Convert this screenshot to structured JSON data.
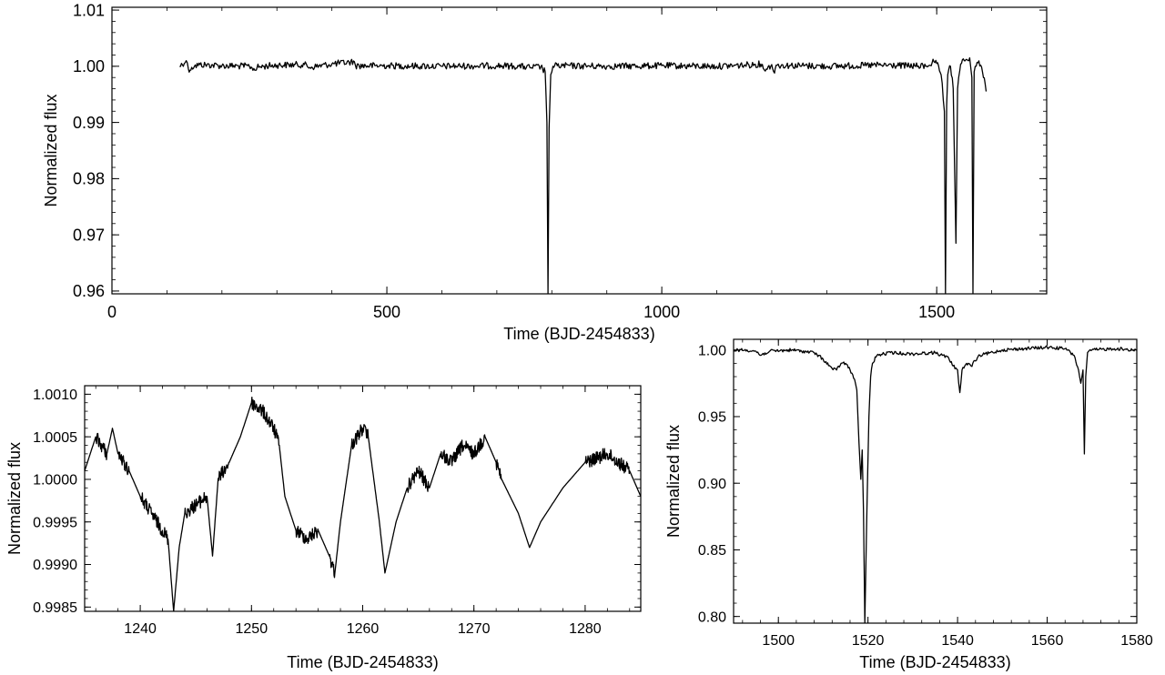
{
  "chart_data": [
    {
      "type": "line",
      "xlabel": "Time (BJD-2454833)",
      "ylabel": "Normalized flux",
      "xlim": [
        0,
        1700
      ],
      "ylim": [
        0.9595,
        1.0105
      ],
      "xticks": [
        0,
        500,
        1000,
        1500
      ],
      "xtick_labels": [
        "0",
        "500",
        "1000",
        "1500"
      ],
      "yticks": [
        0.96,
        0.97,
        0.98,
        0.99,
        1.0,
        1.01
      ],
      "ytick_labels": [
        "0.96",
        "0.97",
        "0.98",
        "0.99",
        "1.00",
        "1.01"
      ],
      "series": [
        {
          "x": [
            123,
            135,
            139,
            142,
            145,
            150,
            160,
            200,
            250,
            258,
            261,
            264,
            275,
            300,
            350,
            360,
            400,
            441,
            443,
            500,
            600,
            700,
            740,
            760,
            780,
            788,
            791,
            793,
            795,
            798,
            802,
            810,
            900,
            1000,
            1100,
            1150,
            1180,
            1181,
            1190,
            1200,
            1205,
            1206,
            1210,
            1300,
            1400,
            1480,
            1495,
            1500,
            1505,
            1508,
            1510,
            1512,
            1514,
            1516,
            1518,
            1520,
            1522,
            1525,
            1530,
            1535,
            1538,
            1540,
            1542,
            1545,
            1550,
            1555,
            1560,
            1564,
            1566,
            1568,
            1570,
            1575,
            1580,
            1585,
            1588,
            1590
          ],
          "y": [
            1.0,
            1.001,
            0.9995,
            0.9993,
            0.9998,
            1.0,
            1.0003,
            1.0001,
            1.0,
            0.9996,
            0.9993,
            0.9998,
            1.0,
            1.0002,
            1.0003,
            0.9998,
            1.0004,
            1.0008,
            1.0001,
            1.0001,
            1.0,
            1.0001,
            1.0,
            0.9998,
            0.9999,
            0.999,
            0.99,
            0.9595,
            0.989,
            0.9985,
            1.0,
            1.0001,
            1.0,
            1.0001,
            1.0,
            1.0002,
            1.0004,
            1.0,
            0.9995,
            1.0003,
            0.9988,
            0.9995,
            1.0002,
            1.0,
            1.0002,
            1.0,
            1.0008,
            1.0005,
            0.9992,
            0.9985,
            0.997,
            0.994,
            0.992,
            0.9595,
            0.993,
            0.9985,
            0.9995,
            1.0,
            0.996,
            0.9685,
            0.996,
            0.998,
            0.9992,
            1.0005,
            1.001,
            1.0012,
            1.0015,
            0.998,
            0.9595,
            0.999,
            1.0,
            1.0006,
            1.0002,
            0.998,
            0.997,
            0.9955
          ]
        }
      ]
    },
    {
      "type": "line",
      "xlabel": "Time (BJD-2454833)",
      "ylabel": "Normalized flux",
      "xlim": [
        1235,
        1285
      ],
      "ylim": [
        0.99845,
        1.0011
      ],
      "xticks": [
        1240,
        1250,
        1260,
        1270,
        1280
      ],
      "xtick_labels": [
        "1240",
        "1250",
        "1260",
        "1270",
        "1280"
      ],
      "yticks": [
        0.9985,
        0.999,
        0.9995,
        1.0,
        1.0005,
        1.001
      ],
      "ytick_labels": [
        "0.9985",
        "0.9990",
        "0.9995",
        "1.0000",
        "1.0005",
        "1.0010"
      ],
      "series": [
        {
          "x": [
            1235.0,
            1236.0,
            1237.0,
            1237.5,
            1238.0,
            1239.0,
            1240.0,
            1241.0,
            1242.0,
            1242.5,
            1243.0,
            1243.5,
            1244.0,
            1245.0,
            1246.0,
            1246.5,
            1247.0,
            1248.0,
            1249.0,
            1250.0,
            1251.0,
            1252.0,
            1252.5,
            1253.0,
            1254.0,
            1255.0,
            1256.0,
            1257.0,
            1257.5,
            1258.0,
            1259.0,
            1260.0,
            1260.5,
            1261.0,
            1261.5,
            1262.0,
            1263.0,
            1264.0,
            1265.0,
            1266.0,
            1267.0,
            1268.0,
            1269.0,
            1270.0,
            1271.0,
            1272.0,
            1272.5,
            1274.0,
            1275.0,
            1276.0,
            1278.0,
            1280.0,
            1282.0,
            1284.0,
            1285.0
          ],
          "y": [
            1.0001,
            1.0005,
            1.0003,
            1.0006,
            1.0003,
            1.0001,
            0.9998,
            0.9996,
            0.9994,
            0.9993,
            0.99845,
            0.9992,
            0.9996,
            0.9997,
            0.9998,
            0.9991,
            1.0,
            1.0002,
            1.0005,
            1.0009,
            1.0008,
            1.0006,
            1.0004,
            0.9998,
            0.9994,
            0.9993,
            0.9994,
            0.9991,
            0.9989,
            0.9995,
            1.0004,
            1.0006,
            1.0005,
            1.0,
            0.9995,
            0.9989,
            0.9995,
            0.9999,
            1.0001,
            0.9999,
            1.0003,
            1.0002,
            1.0004,
            1.0003,
            1.0005,
            1.0002,
            1.0,
            0.9996,
            0.9992,
            0.9995,
            0.9999,
            1.0002,
            1.0003,
            1.0001,
            0.9998
          ]
        }
      ]
    },
    {
      "type": "line",
      "xlabel": "Time (BJD-2454833)",
      "ylabel": "Normalized flux",
      "xlim": [
        1490,
        1580
      ],
      "ylim": [
        0.795,
        1.008
      ],
      "xticks": [
        1500,
        1520,
        1540,
        1560,
        1580
      ],
      "xtick_labels": [
        "1500",
        "1520",
        "1540",
        "1560",
        "1580"
      ],
      "yticks": [
        0.8,
        0.85,
        0.9,
        0.95,
        1.0
      ],
      "ytick_labels": [
        "0.80",
        "0.85",
        "0.90",
        "0.95",
        "1.00"
      ],
      "series": [
        {
          "x": [
            1490,
            1493,
            1495,
            1496,
            1498,
            1503,
            1508,
            1510,
            1512,
            1513,
            1514,
            1515,
            1516,
            1517,
            1517.5,
            1518,
            1518.4,
            1518.7,
            1519,
            1519.3,
            1519.7,
            1520.2,
            1520.6,
            1521,
            1522,
            1525,
            1530,
            1535,
            1538,
            1539,
            1540,
            1540.5,
            1541,
            1542,
            1543,
            1545,
            1550,
            1555,
            1560,
            1564,
            1566,
            1567,
            1567.5,
            1568,
            1568.3,
            1568.6,
            1569,
            1570,
            1575,
            1580
          ],
          "y": [
            1.0,
            1.0,
            0.999,
            0.996,
            0.999,
            1.0,
            0.998,
            0.993,
            0.986,
            0.985,
            0.99,
            0.99,
            0.985,
            0.978,
            0.97,
            0.93,
            0.903,
            0.925,
            0.88,
            0.795,
            0.87,
            0.95,
            0.98,
            0.99,
            0.996,
            0.998,
            0.997,
            0.998,
            0.994,
            0.988,
            0.985,
            0.968,
            0.985,
            0.99,
            0.988,
            0.996,
            1.0,
            1.001,
            1.002,
            1.001,
            0.996,
            0.985,
            0.975,
            0.985,
            0.922,
            0.98,
            0.998,
            1.0,
            1.001,
            1.0
          ]
        }
      ]
    }
  ]
}
